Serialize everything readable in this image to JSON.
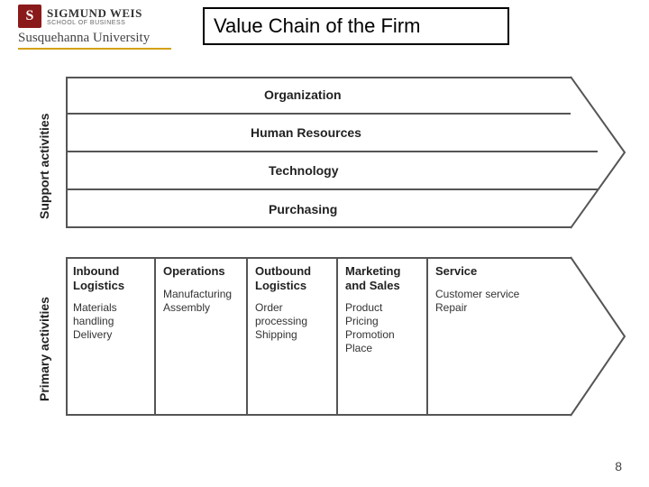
{
  "logo": {
    "initial": "S",
    "school_name": "SIGMUND WEIS",
    "school_sub": "SCHOOL OF BUSINESS",
    "university": "Susquehanna University"
  },
  "title": "Value Chain of the Firm",
  "diagram": {
    "support_label": "Support activities",
    "primary_label": "Primary activities",
    "support_rows": [
      "Organization",
      "Human Resources",
      "Technology",
      "Purchasing"
    ],
    "primary_cols": [
      {
        "head": "Inbound\nLogistics",
        "body": "Materials\nhandling\nDelivery"
      },
      {
        "head": "Operations",
        "body": "Manufacturing\nAssembly"
      },
      {
        "head": "Outbound\nLogistics",
        "body": "Order\nprocessing\nShipping"
      },
      {
        "head": "Marketing\nand Sales",
        "body": "Product\nPricing\nPromotion\nPlace"
      },
      {
        "head": "Service",
        "body": "Customer service\nRepair"
      }
    ],
    "colors": {
      "border": "#555555",
      "text": "#222222",
      "body_text": "#333333",
      "background": "#ffffff",
      "logo_red": "#8a1a1a",
      "logo_gold": "#d4a017"
    },
    "layout": {
      "support_row_height": 42,
      "primary_col_widths": [
        100,
        102,
        100,
        100,
        158
      ],
      "arrow_point_width": 60,
      "font_bold_size": 14,
      "font_body_size": 12
    }
  },
  "page_number": "8"
}
